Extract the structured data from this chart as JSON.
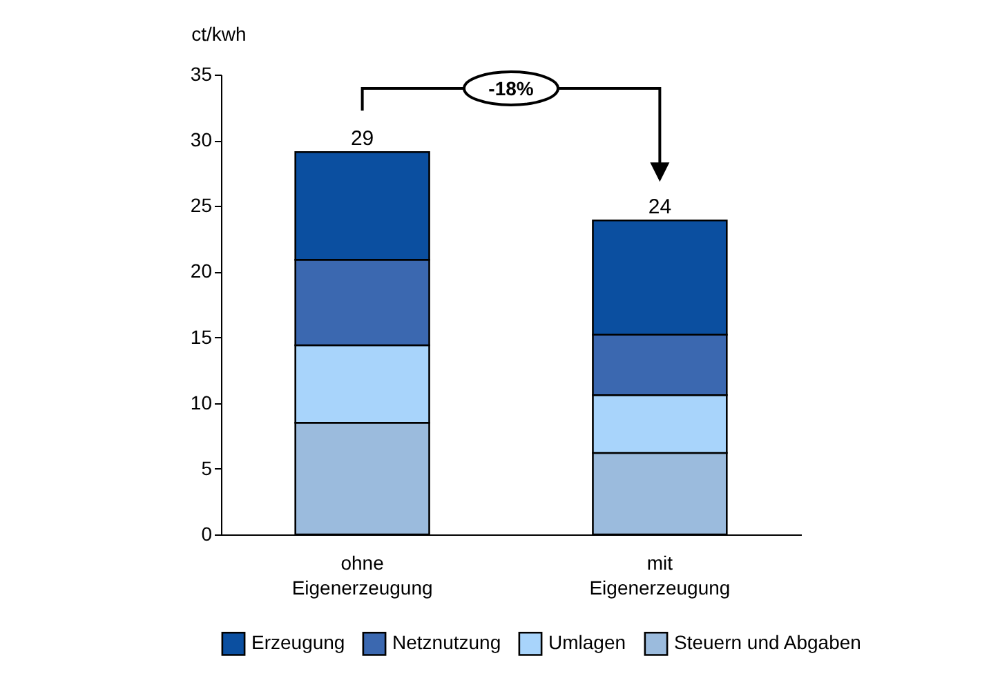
{
  "chart_data": {
    "type": "bar",
    "stacked": true,
    "ylabel": "ct/kwh",
    "categories": [
      "ohne Eigenerzeugung",
      "mit Eigenerzeugung"
    ],
    "series": [
      {
        "name": "Steuern und Abgaben",
        "color": "#9bbbdd",
        "values": [
          8.5,
          6.2
        ]
      },
      {
        "name": "Umlagen",
        "color": "#a8d4fb",
        "values": [
          5.9,
          4.4
        ]
      },
      {
        "name": "Netznutzung",
        "color": "#3b68b0",
        "values": [
          6.5,
          4.6
        ]
      },
      {
        "name": "Erzeugung",
        "color": "#0b4fa0",
        "values": [
          8.2,
          8.7
        ]
      }
    ],
    "totals": [
      "29",
      "24"
    ],
    "ylim": [
      0,
      35
    ],
    "yticks": [
      0,
      5,
      10,
      15,
      20,
      25,
      30,
      35
    ],
    "grid": false,
    "legend": "bottom",
    "annotations": [
      "-18%"
    ]
  }
}
